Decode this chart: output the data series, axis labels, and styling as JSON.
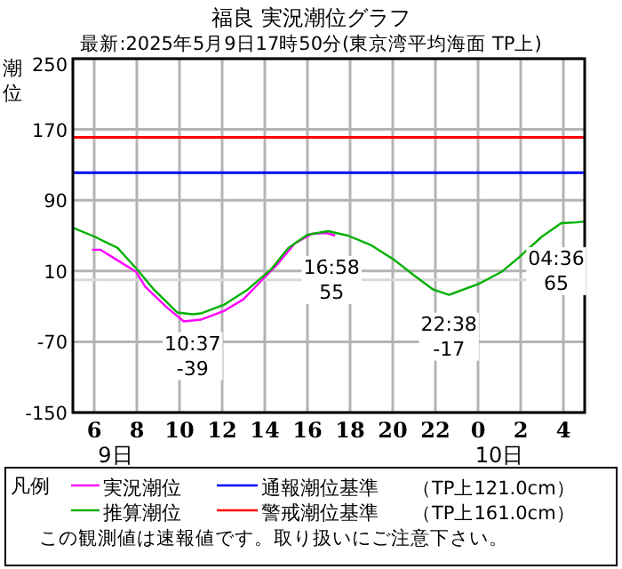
{
  "chart_data": {
    "type": "line",
    "title": "福良 実況潮位グラフ",
    "subtitle": "最新:2025年5月9日17時50分(東京湾平均海面 TP上)",
    "ylabel": "潮位",
    "legend_title": "凡例",
    "xlim": [
      "2025-05-09T05:00",
      "2025-05-10T05:00"
    ],
    "xticks": [
      {
        "value": "2025-05-09T06:00",
        "label": "6"
      },
      {
        "value": "2025-05-09T08:00",
        "label": "8"
      },
      {
        "value": "2025-05-09T10:00",
        "label": "10"
      },
      {
        "value": "2025-05-09T12:00",
        "label": "12"
      },
      {
        "value": "2025-05-09T14:00",
        "label": "14"
      },
      {
        "value": "2025-05-09T16:00",
        "label": "16"
      },
      {
        "value": "2025-05-09T18:00",
        "label": "18"
      },
      {
        "value": "2025-05-09T20:00",
        "label": "20"
      },
      {
        "value": "2025-05-09T22:00",
        "label": "22"
      },
      {
        "value": "2025-05-10T00:00",
        "label": "0"
      },
      {
        "value": "2025-05-10T02:00",
        "label": "2"
      },
      {
        "value": "2025-05-10T04:00",
        "label": "4"
      }
    ],
    "ylim": [
      -150,
      250
    ],
    "yticks": [
      250,
      170,
      90,
      10,
      -70,
      -150
    ],
    "grid": true,
    "legend": "bottom",
    "line_style": "solid",
    "series": [
      {
        "name": "実況潮位",
        "color": "#ff00ff",
        "x": [
          "2025-05-09T05:54",
          "2025-05-09T06:18",
          "2025-05-09T07:06",
          "2025-05-09T07:58",
          "2025-05-09T08:24",
          "2025-05-09T09:24",
          "2025-05-09T10:12",
          "2025-05-09T11:00",
          "2025-05-09T12:06",
          "2025-05-09T13:00",
          "2025-05-09T13:48",
          "2025-05-09T14:36",
          "2025-05-09T15:24",
          "2025-05-09T16:12",
          "2025-05-09T16:54",
          "2025-05-09T17:18"
        ],
        "values": [
          34,
          34,
          22,
          9,
          -8,
          -31,
          -47,
          -45,
          -35,
          -22,
          -2,
          18,
          41,
          52,
          53,
          50
        ]
      },
      {
        "name": "推算潮位",
        "color": "#00b000",
        "x": [
          "2025-05-09T05:00",
          "2025-05-09T06:00",
          "2025-05-09T07:06",
          "2025-05-09T08:00",
          "2025-05-09T08:48",
          "2025-05-09T09:54",
          "2025-05-09T10:37",
          "2025-05-09T11:00",
          "2025-05-09T12:06",
          "2025-05-09T13:12",
          "2025-05-09T14:18",
          "2025-05-09T15:06",
          "2025-05-09T16:00",
          "2025-05-09T16:58",
          "2025-05-09T17:54",
          "2025-05-09T19:00",
          "2025-05-09T20:06",
          "2025-05-09T21:00",
          "2025-05-09T21:54",
          "2025-05-09T22:38",
          "2025-05-10T00:00",
          "2025-05-10T01:06",
          "2025-05-10T01:54",
          "2025-05-10T03:00",
          "2025-05-10T03:54",
          "2025-05-10T04:36",
          "2025-05-10T05:00"
        ],
        "values": [
          59,
          49,
          36,
          12,
          -11,
          -37,
          -39,
          -38,
          -28,
          -11,
          12,
          36,
          51,
          55,
          50,
          39,
          22,
          5,
          -11,
          -17,
          -5,
          9,
          25,
          49,
          64,
          65,
          66
        ]
      }
    ],
    "ref_lines": [
      {
        "axis": "y",
        "value": 161,
        "label": "警戒潮位基準",
        "color": "#ff0000"
      },
      {
        "axis": "y",
        "value": 121,
        "label": "通報潮位基準",
        "color": "#0000ff"
      },
      {
        "axis": "y",
        "value": 0,
        "color": "#d8d8d8"
      }
    ],
    "annotations": [
      {
        "text": "10:37\n-39",
        "x": "2025-05-09T10:37",
        "y": -39
      },
      {
        "text": "16:58\n55",
        "x": "2025-05-09T16:58",
        "y": 55
      },
      {
        "text": "22:38\n-17",
        "x": "2025-05-09T22:38",
        "y": -17
      },
      {
        "text": "04:36\n65",
        "x": "2025-05-10T04:36",
        "y": 65
      },
      "9日",
      "10日",
      "（TP上121.0cm）",
      "（TP上161.0cm）",
      "この観測値は速報値です。取り扱いにご注意下さい。"
    ]
  }
}
